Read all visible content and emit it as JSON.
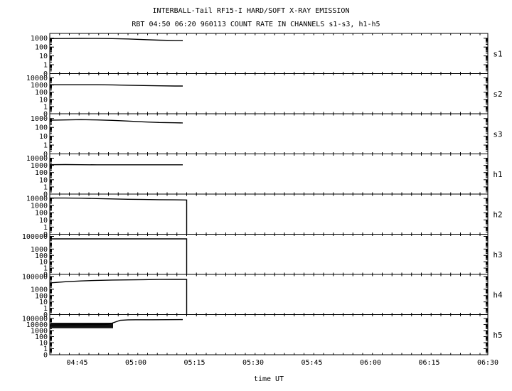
{
  "title": "INTERBALL-Tail RF15-I HARD/SOFT X-RAY EMISSION",
  "subtitle": "RBT 04:50 06:20 960113  COUNT RATE IN CHANNELS s1-s3, h1-h5",
  "chart_data": {
    "type": "line",
    "scale": "log",
    "xlabel": "time UT",
    "x_ticks": [
      "04:45",
      "05:00",
      "05:15",
      "05:30",
      "05:45",
      "06:00",
      "06:15",
      "06:30"
    ],
    "x_range": [
      "04:38",
      "06:30"
    ],
    "panels": [
      {
        "name": "s1",
        "y_ticks": [
          "0",
          "1",
          "10",
          "100",
          "1000"
        ],
        "y_range": [
          0.1,
          2000
        ],
        "series": {
          "x": [
            "04:38",
            "04:42",
            "04:46",
            "04:50",
            "04:54",
            "04:58",
            "05:02",
            "05:06",
            "05:10",
            "05:12"
          ],
          "y": [
            900,
            920,
            950,
            940,
            900,
            820,
            700,
            600,
            560,
            550
          ]
        }
      },
      {
        "name": "s2",
        "y_ticks": [
          "0",
          "1",
          "10",
          "100",
          "1000",
          "10000"
        ],
        "y_range": [
          0.1,
          20000
        ],
        "series": {
          "x": [
            "04:38",
            "04:42",
            "04:46",
            "04:50",
            "04:54",
            "04:58",
            "05:02",
            "05:06",
            "05:10",
            "05:12"
          ],
          "y": [
            1100,
            1100,
            1100,
            1100,
            1050,
            950,
            850,
            780,
            740,
            730
          ]
        }
      },
      {
        "name": "s3",
        "y_ticks": [
          "0",
          "1",
          "10",
          "100",
          "1000"
        ],
        "y_range": [
          0.1,
          2000
        ],
        "series": {
          "x": [
            "04:38",
            "04:42",
            "04:46",
            "04:50",
            "04:54",
            "04:58",
            "05:02",
            "05:06",
            "05:10",
            "05:12"
          ],
          "y": [
            650,
            700,
            750,
            700,
            620,
            520,
            420,
            360,
            330,
            320
          ]
        }
      },
      {
        "name": "h1",
        "y_ticks": [
          "0",
          "1",
          "10",
          "100",
          "1000",
          "10000"
        ],
        "y_range": [
          0.1,
          20000
        ],
        "series": {
          "x": [
            "04:38",
            "04:42",
            "04:46",
            "04:50",
            "04:54",
            "04:58",
            "05:02",
            "05:06",
            "05:10",
            "05:12"
          ],
          "y": [
            1250,
            1300,
            1250,
            1200,
            1200,
            1200,
            1200,
            1200,
            1200,
            1200
          ]
        }
      },
      {
        "name": "h2",
        "y_ticks": [
          "0",
          "1",
          "10",
          "100",
          "1000",
          "10000"
        ],
        "y_range": [
          0.1,
          20000
        ],
        "series": {
          "x": [
            "04:38",
            "04:42",
            "04:46",
            "04:50",
            "04:54",
            "04:58",
            "05:02",
            "05:06",
            "05:10",
            "05:13",
            "05:13",
            "05:13"
          ],
          "y": [
            11000,
            11000,
            10500,
            9500,
            8500,
            7500,
            7000,
            6500,
            6200,
            6000,
            0.1,
            0.1
          ]
        }
      },
      {
        "name": "h3",
        "y_ticks": [
          "0",
          "1",
          "10",
          "100",
          "1000",
          "100000"
        ],
        "y_range": [
          0.1,
          100000
        ],
        "series": {
          "x": [
            "04:38",
            "04:42",
            "04:46",
            "04:50",
            "04:54",
            "04:58",
            "05:02",
            "05:06",
            "05:10",
            "05:13",
            "05:13",
            "05:13"
          ],
          "y": [
            40000,
            40000,
            40000,
            40000,
            40000,
            40000,
            40000,
            40000,
            40000,
            40000,
            0.1,
            0.1
          ]
        }
      },
      {
        "name": "h4",
        "y_ticks": [
          "0",
          "1",
          "10",
          "100",
          "1000",
          "100000"
        ],
        "y_range": [
          0.1,
          100000
        ],
        "series": {
          "x": [
            "04:38",
            "04:42",
            "04:46",
            "04:50",
            "04:54",
            "04:58",
            "05:02",
            "05:06",
            "05:10",
            "05:13",
            "05:13",
            "05:13"
          ],
          "y": [
            10000,
            15000,
            20000,
            25000,
            28000,
            30000,
            32000,
            35000,
            36000,
            36000,
            0.1,
            0.1
          ]
        }
      },
      {
        "name": "h5",
        "y_ticks": [
          "0",
          "1",
          "10",
          "100",
          "1000",
          "10000",
          "100000"
        ],
        "y_range": [
          0.1,
          200000
        ],
        "series": {
          "x": [
            "04:38",
            "04:40",
            "04:42",
            "04:44",
            "04:46",
            "04:48",
            "04:50",
            "04:52",
            "04:53",
            "04:54",
            "04:55",
            "04:56",
            "04:58",
            "05:00",
            "05:04",
            "05:08",
            "05:12"
          ],
          "y": [
            8000,
            9000,
            8500,
            9500,
            9000,
            10000,
            9500,
            10500,
            12000,
            18000,
            30000,
            50000,
            60000,
            62000,
            63000,
            64000,
            65000
          ]
        },
        "band": {
          "x": [
            "04:38",
            "04:54"
          ],
          "ylow": 2500,
          "yhigh": 20000
        }
      }
    ]
  }
}
